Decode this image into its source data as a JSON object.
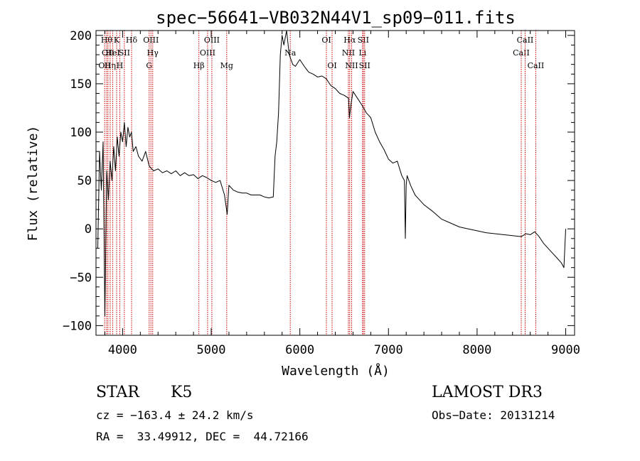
{
  "chart_data": {
    "type": "line",
    "title": "spec−56641−VB032N44V1_sp09−011.fits",
    "xlabel": "Wavelength (Å)",
    "ylabel": "Flux (relative)",
    "xlim": [
      3700,
      9100
    ],
    "ylim": [
      -110,
      205
    ],
    "xticks": [
      4000,
      5000,
      6000,
      7000,
      8000,
      9000
    ],
    "xtick_labels": [
      "4000",
      "5000",
      "6000",
      "7000",
      "8000",
      "9000"
    ],
    "yticks": [
      -100,
      -50,
      0,
      50,
      100,
      150,
      200
    ],
    "ytick_labels": [
      "−100",
      "−50",
      "0",
      "50",
      "100",
      "150",
      "200"
    ],
    "line_color": "#000000",
    "marker_color": "#cc0000",
    "series": [
      {
        "name": "flux",
        "x": [
          3720,
          3740,
          3760,
          3780,
          3800,
          3820,
          3840,
          3860,
          3880,
          3900,
          3920,
          3940,
          3960,
          3980,
          4000,
          4020,
          4040,
          4060,
          4080,
          4100,
          4120,
          4150,
          4180,
          4220,
          4260,
          4300,
          4350,
          4400,
          4450,
          4500,
          4550,
          4600,
          4650,
          4700,
          4750,
          4800,
          4850,
          4900,
          4950,
          5000,
          5050,
          5100,
          5150,
          5180,
          5200,
          5250,
          5300,
          5350,
          5400,
          5450,
          5500,
          5550,
          5600,
          5650,
          5700,
          5720,
          5740,
          5760,
          5780,
          5800,
          5820,
          5850,
          5880,
          5900,
          5920,
          5950,
          6000,
          6050,
          6100,
          6150,
          6200,
          6250,
          6300,
          6350,
          6400,
          6450,
          6500,
          6550,
          6560,
          6580,
          6600,
          6650,
          6700,
          6750,
          6800,
          6850,
          6900,
          6950,
          7000,
          7050,
          7100,
          7150,
          7180,
          7190,
          7200,
          7210,
          7250,
          7300,
          7350,
          7400,
          7500,
          7600,
          7700,
          7800,
          7900,
          8000,
          8100,
          8200,
          8300,
          8400,
          8500,
          8550,
          8600,
          8650,
          8700,
          8750,
          8800,
          8850,
          8900,
          8950,
          8980,
          9000
        ],
        "y": [
          -20,
          80,
          40,
          90,
          -90,
          60,
          30,
          70,
          50,
          85,
          60,
          95,
          75,
          100,
          90,
          110,
          85,
          105,
          95,
          100,
          80,
          85,
          75,
          70,
          80,
          65,
          60,
          62,
          58,
          60,
          57,
          60,
          55,
          58,
          55,
          56,
          52,
          55,
          53,
          50,
          48,
          50,
          35,
          15,
          45,
          40,
          38,
          37,
          37,
          35,
          35,
          35,
          33,
          32,
          33,
          75,
          90,
          120,
          180,
          200,
          190,
          205,
          180,
          175,
          170,
          168,
          175,
          168,
          162,
          160,
          157,
          158,
          155,
          148,
          145,
          140,
          138,
          135,
          115,
          130,
          142,
          135,
          128,
          120,
          115,
          100,
          90,
          82,
          72,
          68,
          70,
          55,
          50,
          -10,
          45,
          55,
          45,
          35,
          30,
          25,
          18,
          10,
          6,
          2,
          0,
          -2,
          -4,
          -5,
          -6,
          -7,
          -8,
          -5,
          -6,
          -3,
          -8,
          -15,
          -20,
          -25,
          -30,
          -35,
          -40,
          0
        ]
      }
    ],
    "line_markers": [
      {
        "x": 3798,
        "label": "OII",
        "row": 3
      },
      {
        "x": 3820,
        "label": "Hθ",
        "row": 1
      },
      {
        "x": 3835,
        "label": "OII",
        "row": 2
      },
      {
        "x": 3860,
        "label": "Hη",
        "row": 3
      },
      {
        "x": 3889,
        "label": "HeI",
        "row": 2
      },
      {
        "x": 3933,
        "label": "K",
        "row": 1
      },
      {
        "x": 3968,
        "label": "H",
        "row": 3
      },
      {
        "x": 4020,
        "label": "SII",
        "row": 2
      },
      {
        "x": 4101,
        "label": "Hδ",
        "row": 1
      },
      {
        "x": 4300,
        "label": "G",
        "row": 3
      },
      {
        "x": 4320,
        "label": "OIII",
        "row": 1
      },
      {
        "x": 4340,
        "label": "Hγ",
        "row": 2
      },
      {
        "x": 4861,
        "label": "Hβ",
        "row": 3
      },
      {
        "x": 4959,
        "label": "OIII",
        "row": 2
      },
      {
        "x": 5007,
        "label": "OIII",
        "row": 1
      },
      {
        "x": 5175,
        "label": "Mg",
        "row": 3
      },
      {
        "x": 5892,
        "label": "Na",
        "row": 2
      },
      {
        "x": 6300,
        "label": "OI",
        "row": 1
      },
      {
        "x": 6364,
        "label": "OI",
        "row": 3
      },
      {
        "x": 6548,
        "label": "NII",
        "row": 2
      },
      {
        "x": 6563,
        "label": "Hα",
        "row": 1
      },
      {
        "x": 6584,
        "label": "NII",
        "row": 3
      },
      {
        "x": 6708,
        "label": "Li",
        "row": 2
      },
      {
        "x": 6716,
        "label": "SII",
        "row": 1
      },
      {
        "x": 6731,
        "label": "SII",
        "row": 3
      },
      {
        "x": 8498,
        "label": "CaII",
        "row": 2
      },
      {
        "x": 8542,
        "label": "CaII",
        "row": 1
      },
      {
        "x": 8662,
        "label": "CaII",
        "row": 3
      }
    ]
  },
  "info": {
    "class_label": "STAR",
    "subclass": "K5",
    "survey": "LAMOST DR3",
    "cz": "cz = −163.4 ± 24.2 km/s",
    "obs_date": "Obs−Date: 20131214",
    "coords": "RA =  33.49912, DEC =  44.72166"
  }
}
